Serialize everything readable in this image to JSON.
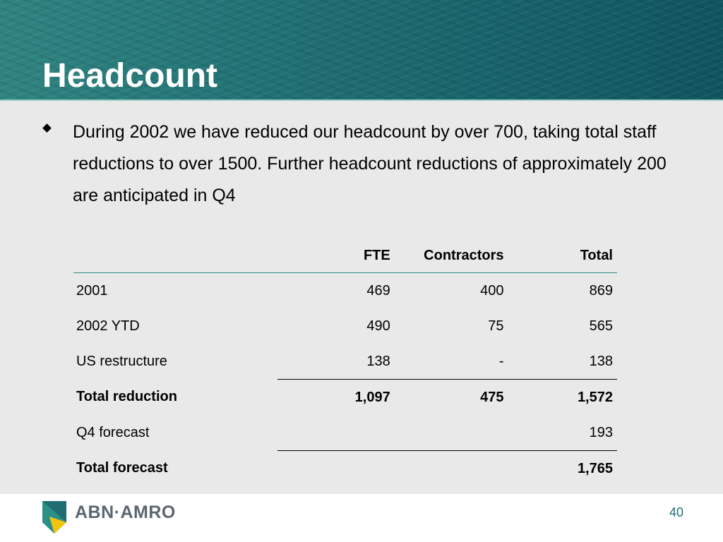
{
  "slide": {
    "title": "Headcount",
    "bullet": "During 2002 we have reduced our headcount by over 700, taking total staff reductions to over 1500.  Further headcount reductions of approximately 200 are anticipated in Q4",
    "page_number": "40"
  },
  "table": {
    "headers": [
      "",
      "FTE",
      "Contractors",
      "Total"
    ],
    "rows": [
      {
        "label": "2001",
        "fte": "469",
        "contractors": "400",
        "total": "869"
      },
      {
        "label": "2002 YTD",
        "fte": "490",
        "contractors": "75",
        "total": "565"
      },
      {
        "label": "US restructure",
        "fte": "138",
        "contractors": "-",
        "total": "138"
      },
      {
        "label": "Total reduction",
        "fte": "1,097",
        "contractors": "475",
        "total": "1,572"
      },
      {
        "label": "Q4 forecast",
        "fte": "",
        "contractors": "",
        "total": "193"
      },
      {
        "label": "Total forecast",
        "fte": "",
        "contractors": "",
        "total": "1,765"
      }
    ]
  },
  "footer": {
    "brand": "ABN·AMRO",
    "logo_icon": "abn-amro-shield-icon",
    "colors": {
      "teal": "#1f6d72",
      "yellow": "#f2c30f",
      "grey": "#5b6670"
    }
  }
}
